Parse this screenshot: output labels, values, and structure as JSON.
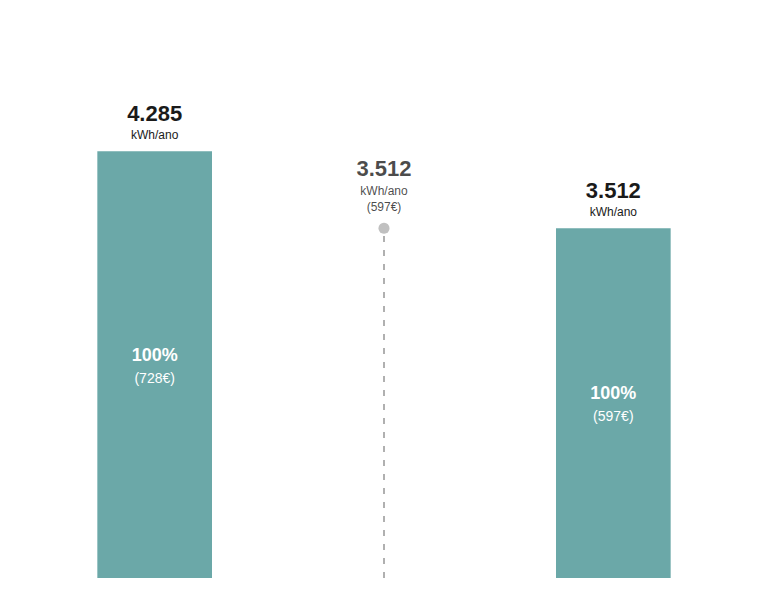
{
  "chart_data": {
    "type": "bar",
    "categories": [
      null,
      null,
      null
    ],
    "series": [
      {
        "type": "bar",
        "color": "#6ba8a8",
        "values": [
          4285,
          null,
          3512
        ],
        "value_labels": [
          "4.285",
          null,
          "3.512"
        ],
        "unit_labels": [
          "kWh/ano",
          null,
          "kWh/ano"
        ],
        "inner_labels": [
          "100%",
          null,
          "100%"
        ],
        "inner_cost_labels": [
          "(728€)",
          null,
          "(597€)"
        ]
      },
      {
        "type": "lollipop",
        "color": "#b0b0b0",
        "line_style": "dashed",
        "marker": "circle",
        "values": [
          null,
          3512,
          null
        ],
        "value_labels": [
          null,
          "3.512",
          null
        ],
        "unit_labels": [
          null,
          "kWh/ano",
          null
        ],
        "cost_labels": [
          null,
          "(597€)",
          null
        ]
      }
    ],
    "ylim": [
      0,
      4800
    ],
    "tick_labels": false,
    "grid": false,
    "data_labels": true,
    "label_color": "#1a1a1a",
    "inner_label_color": "#ffffff"
  }
}
